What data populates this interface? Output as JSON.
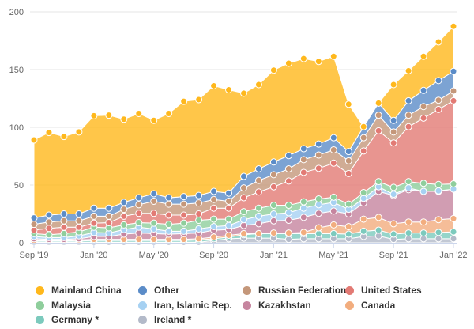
{
  "chart_data": {
    "type": "area",
    "stacked": true,
    "title": "",
    "xlabel": "",
    "ylabel": "",
    "ylim": [
      0,
      200
    ],
    "yticks": [
      "0",
      "50",
      "100",
      "150",
      "200"
    ],
    "grid": true,
    "legend_position": "bottom",
    "x": [
      "Sep '19",
      "Oct '19",
      "Nov '19",
      "Dec '19",
      "Jan '20",
      "Feb '20",
      "Mar '20",
      "Apr '20",
      "May '20",
      "Jun '20",
      "Jul '20",
      "Aug '20",
      "Sep '20",
      "Oct '20",
      "Nov '20",
      "Dec '20",
      "Jan '21",
      "Feb '21",
      "Mar '21",
      "Apr '21",
      "May '21",
      "Jun '21",
      "Jul '21",
      "Aug '21",
      "Sep '21",
      "Oct '21",
      "Nov '21",
      "Dec '21",
      "Jan '22"
    ],
    "xticks": [
      "Sep '19",
      "Jan '20",
      "May '20",
      "Sep '20",
      "Jan '21",
      "May '21",
      "Sep '21",
      "Jan '22"
    ],
    "series": [
      {
        "name": "Ireland *",
        "color": "#b3bac9",
        "values": [
          0.5,
          0.5,
          0.5,
          0.5,
          0.5,
          0.5,
          0.5,
          0.5,
          0.5,
          0.5,
          0.5,
          0.5,
          2,
          3.5,
          4,
          4,
          4,
          3,
          3.5,
          3.5,
          3.5,
          3.5,
          5.5,
          6,
          3,
          3.5,
          3.5,
          3.5,
          3.5
        ]
      },
      {
        "name": "Germany *",
        "color": "#7ccabd",
        "values": [
          1,
          1,
          1,
          1,
          1.5,
          1.5,
          1.5,
          1.5,
          1.5,
          1.5,
          1.5,
          2,
          1.5,
          1.5,
          3,
          4,
          4,
          5,
          4.5,
          4.5,
          4.5,
          4,
          4.5,
          5,
          4.5,
          5,
          5,
          5.5,
          6
        ]
      },
      {
        "name": "Canada",
        "color": "#f2ad7e",
        "values": [
          0.5,
          0.5,
          0.5,
          1,
          1,
          1,
          1,
          1,
          1,
          1,
          1,
          1,
          1.5,
          1.5,
          1,
          0,
          0.5,
          0.5,
          1,
          5,
          7.5,
          6.5,
          10.5,
          11,
          9,
          9.5,
          9.5,
          11,
          11.5
        ]
      },
      {
        "name": "Kazakhstan",
        "color": "#c6859f",
        "values": [
          1.5,
          1,
          1,
          1,
          2.5,
          2.5,
          4.5,
          5.5,
          5,
          4.5,
          5,
          5,
          6,
          5,
          7,
          8.5,
          10.5,
          11,
          13,
          12.5,
          12,
          11,
          14,
          22.5,
          24.5,
          28,
          26.5,
          24.5,
          25.5
        ]
      },
      {
        "name": "Iran, Islamic Rep.",
        "color": "#a6d1f2",
        "values": [
          2,
          1.5,
          1.5,
          2.5,
          3.5,
          3,
          4,
          5,
          4,
          2.5,
          2,
          3.5,
          3,
          3.5,
          5,
          6.5,
          6,
          6.5,
          8,
          7.5,
          7.5,
          4,
          4,
          4,
          1,
          1.5,
          0,
          0.5,
          0
        ]
      },
      {
        "name": "Malaysia",
        "color": "#8fce9c",
        "values": [
          2.5,
          2.5,
          3.5,
          3.5,
          4.5,
          4.5,
          4,
          4,
          5,
          6,
          7,
          7.5,
          6.5,
          5.5,
          7,
          7,
          7.5,
          6.5,
          5.5,
          5,
          4.5,
          4.5,
          5,
          4.5,
          6,
          5.5,
          7,
          5.5,
          4.5
        ]
      },
      {
        "name": "United States",
        "color": "#e27a74",
        "values": [
          3,
          5.5,
          5.5,
          4,
          3.5,
          4.5,
          7.5,
          8,
          8.5,
          8,
          7,
          5.5,
          9.5,
          9.5,
          12,
          14,
          16,
          21,
          25.5,
          26.5,
          29.5,
          26.5,
          36,
          44,
          38.5,
          47.5,
          56.5,
          65,
          72
        ]
      },
      {
        "name": "Russian Federation",
        "color": "#c4977a",
        "values": [
          5,
          5.5,
          5.5,
          5.5,
          6,
          5.5,
          6,
          7.5,
          10.5,
          9.5,
          9.5,
          9.5,
          7.5,
          6,
          8.5,
          10,
          10.5,
          10.5,
          11,
          11.5,
          11.5,
          11,
          11.5,
          13.5,
          9.5,
          10,
          10,
          8,
          8.5
        ]
      },
      {
        "name": "Other",
        "color": "#5b8cc8",
        "values": [
          5.5,
          6,
          6,
          6,
          7,
          7,
          6,
          6,
          6.5,
          5.5,
          6.5,
          6.5,
          7,
          7,
          10,
          10,
          11,
          11.5,
          9.5,
          9.5,
          10.5,
          8,
          9.5,
          10.5,
          10,
          12.5,
          14,
          17,
          17
        ]
      },
      {
        "name": "Mainland China",
        "color": "#ffb81c",
        "values": [
          67.5,
          71.5,
          67,
          71,
          80,
          80.5,
          72,
          73,
          63.5,
          73,
          82.5,
          83,
          91.5,
          89.5,
          72,
          73,
          79.5,
          80,
          78,
          71.5,
          70.5,
          41,
          0,
          0,
          31,
          26,
          29.5,
          33.5,
          39
        ]
      }
    ]
  },
  "legend": [
    {
      "label": "Mainland China",
      "color": "#ffb81c"
    },
    {
      "label": "Other",
      "color": "#5b8cc8"
    },
    {
      "label": "Russian Federation",
      "color": "#c4977a"
    },
    {
      "label": "United States",
      "color": "#e27a74"
    },
    {
      "label": "Malaysia",
      "color": "#8fce9c"
    },
    {
      "label": "Iran, Islamic Rep.",
      "color": "#a6d1f2"
    },
    {
      "label": "Kazakhstan",
      "color": "#c6859f"
    },
    {
      "label": "Canada",
      "color": "#f2ad7e"
    },
    {
      "label": "Germany *",
      "color": "#7ccabd"
    },
    {
      "label": "Ireland *",
      "color": "#b3bac9"
    }
  ]
}
